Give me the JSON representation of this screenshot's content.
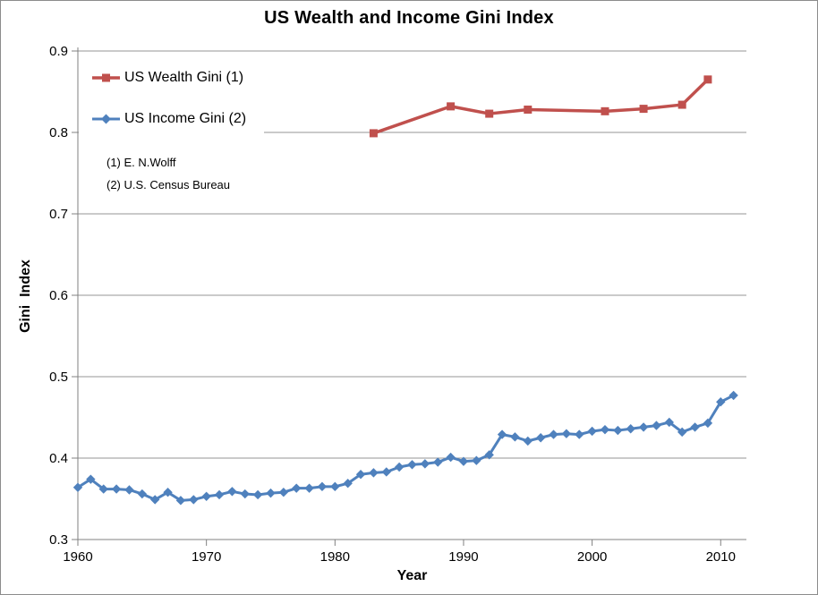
{
  "chart_data": {
    "type": "line",
    "title": "US Wealth and Income Gini Index",
    "xlabel": "Year",
    "ylabel": "Gini  Index",
    "xlim": [
      1960,
      2012
    ],
    "ylim": [
      0.3,
      0.9
    ],
    "x_ticks": [
      1960,
      1970,
      1980,
      1990,
      2000,
      2010
    ],
    "y_ticks": [
      0.3,
      0.4,
      0.5,
      0.6,
      0.7,
      0.8,
      0.9
    ],
    "grid": "horizontal-only",
    "legend_position": "inside-top-left",
    "series": [
      {
        "name": "US Wealth Gini (1)",
        "color": "#C0504D",
        "marker": "square",
        "x": [
          1983,
          1989,
          1992,
          1995,
          2001,
          2004,
          2007,
          2009
        ],
        "y": [
          0.799,
          0.832,
          0.823,
          0.828,
          0.826,
          0.829,
          0.834,
          0.865
        ]
      },
      {
        "name": "US Income Gini (2)",
        "color": "#4F81BD",
        "marker": "diamond",
        "x": [
          1960,
          1961,
          1962,
          1963,
          1964,
          1965,
          1966,
          1967,
          1968,
          1969,
          1970,
          1971,
          1972,
          1973,
          1974,
          1975,
          1976,
          1977,
          1978,
          1979,
          1980,
          1981,
          1982,
          1983,
          1984,
          1985,
          1986,
          1987,
          1988,
          1989,
          1990,
          1991,
          1992,
          1993,
          1994,
          1995,
          1996,
          1997,
          1998,
          1999,
          2000,
          2001,
          2002,
          2003,
          2004,
          2005,
          2006,
          2007,
          2008,
          2009,
          2010,
          2011
        ],
        "y": [
          0.364,
          0.374,
          0.362,
          0.362,
          0.361,
          0.356,
          0.349,
          0.358,
          0.348,
          0.349,
          0.353,
          0.355,
          0.359,
          0.356,
          0.355,
          0.357,
          0.358,
          0.363,
          0.363,
          0.365,
          0.365,
          0.369,
          0.38,
          0.382,
          0.383,
          0.389,
          0.392,
          0.393,
          0.395,
          0.401,
          0.396,
          0.397,
          0.404,
          0.429,
          0.426,
          0.421,
          0.425,
          0.429,
          0.43,
          0.429,
          0.433,
          0.435,
          0.434,
          0.436,
          0.438,
          0.44,
          0.444,
          0.432,
          0.438,
          0.443,
          0.469,
          0.477
        ]
      }
    ]
  },
  "annotations": {
    "note1": "(1) E. N.Wolff",
    "note2": "(2) U.S. Census Bureau"
  },
  "colors": {
    "wealth_series": "#C0504D",
    "income_series": "#4F81BD",
    "gridline": "#969696",
    "axis": "#808080",
    "text": "#000000",
    "frame_border": "#8c8c8c",
    "background": "#ffffff"
  }
}
